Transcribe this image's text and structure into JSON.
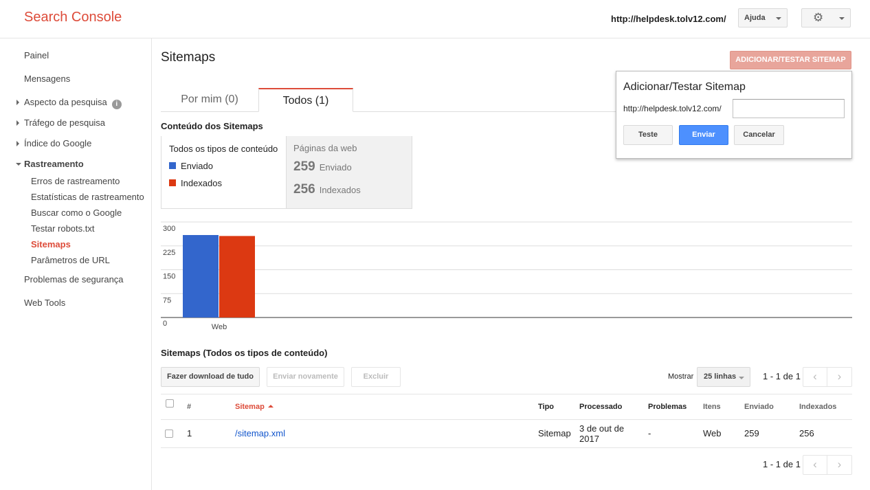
{
  "header": {
    "app_title": "Search Console",
    "site_url": "http://helpdesk.tolv12.com/",
    "help_label": "Ajuda",
    "settings_icon": "gear-icon"
  },
  "sidebar": {
    "items": [
      {
        "label": "Painel"
      },
      {
        "label": "Mensagens"
      },
      {
        "label": "Aspecto da pesquisa"
      },
      {
        "label": "Tráfego de pesquisa"
      },
      {
        "label": "Índice do Google"
      },
      {
        "label": "Rastreamento"
      },
      {
        "label": "Erros de rastreamento"
      },
      {
        "label": "Estatísticas de rastreamento"
      },
      {
        "label": "Buscar como o Google"
      },
      {
        "label": "Testar robots.txt"
      },
      {
        "label": "Sitemaps"
      },
      {
        "label": "Parâmetros de URL"
      },
      {
        "label": "Problemas de segurança"
      },
      {
        "label": "Web Tools"
      }
    ],
    "info_glyph": "i"
  },
  "main": {
    "page_title": "Sitemaps",
    "add_test_button": "ADICIONAR/TESTAR SITEMAP",
    "tabs": [
      {
        "label": "Por mim (0)"
      },
      {
        "label": "Todos (1)"
      }
    ],
    "content_section_title": "Conteúdo dos Sitemaps",
    "legend": {
      "heading": "Todos os tipos de conteúdo",
      "submitted": "Enviado",
      "indexed": "Indexados",
      "submitted_color": "#3366cc",
      "indexed_color": "#dc3912"
    },
    "web_pages": {
      "heading": "Páginas da web",
      "submitted_count": "259",
      "submitted_label": "Enviado",
      "indexed_count": "256",
      "indexed_label": "Indexados"
    },
    "table_section_title": "Sitemaps (Todos os tipos de conteúdo)"
  },
  "chart_data": {
    "type": "bar",
    "categories": [
      "Web"
    ],
    "series": [
      {
        "name": "Enviado",
        "values": [
          259
        ],
        "color": "#3366cc"
      },
      {
        "name": "Indexados",
        "values": [
          256
        ],
        "color": "#dc3912"
      }
    ],
    "ylim": [
      0,
      300
    ],
    "yticks": [
      "300",
      "225",
      "150",
      "75",
      "0"
    ],
    "grid": true
  },
  "popup": {
    "title": "Adicionar/Testar Sitemap",
    "url_prefix": "http://helpdesk.tolv12.com/",
    "input_value": "",
    "test_button": "Teste",
    "submit_button": "Enviar",
    "cancel_button": "Cancelar"
  },
  "table": {
    "download_button": "Fazer download de tudo",
    "resubmit_button": "Enviar novamente",
    "delete_button": "Excluir",
    "show_label": "Mostrar",
    "rows_option": "25 linhas",
    "pagination": "1 - 1 de 1",
    "prev_glyph": "‹",
    "next_glyph": "›",
    "columns": {
      "num": "#",
      "sitemap": "Sitemap",
      "type": "Tipo",
      "processed": "Processado",
      "issues": "Problemas",
      "items": "Itens",
      "submitted": "Enviado",
      "indexed": "Indexados"
    },
    "rows": [
      {
        "num": "1",
        "sitemap": "/sitemap.xml",
        "type": "Sitemap",
        "processed_line1": "3 de out de",
        "processed_line2": "2017",
        "issues": "-",
        "items": "Web",
        "submitted": "259",
        "indexed": "256"
      }
    ]
  }
}
